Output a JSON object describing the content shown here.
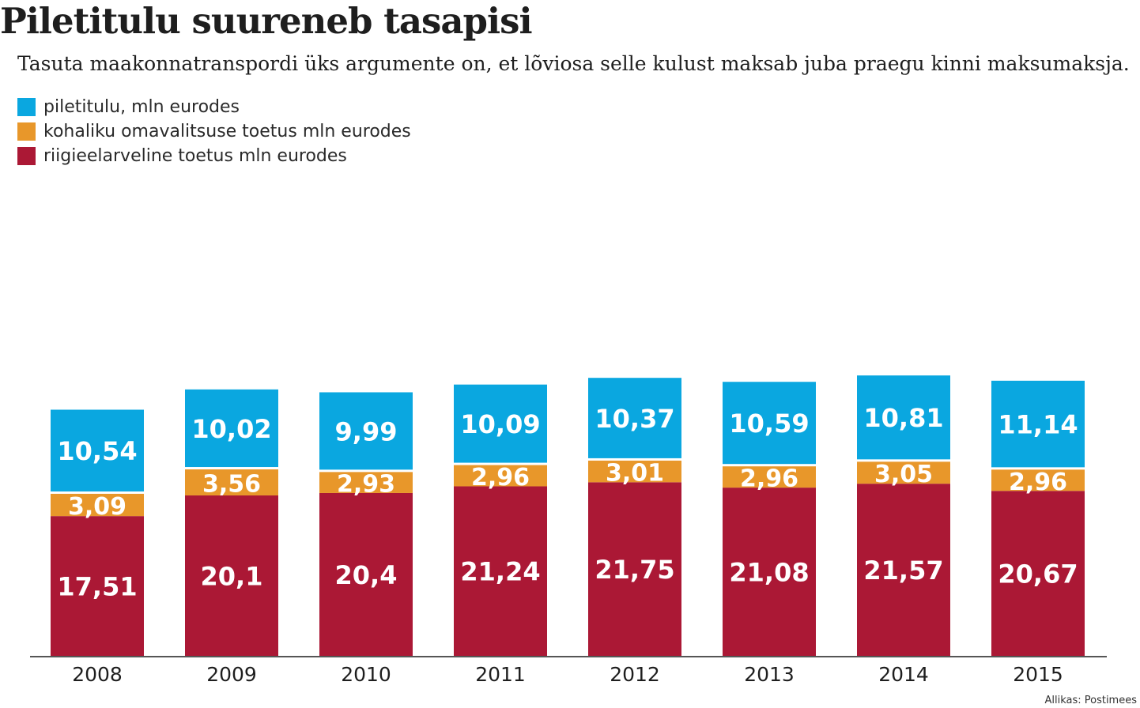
{
  "header": {
    "title": "Piletitulu suureneb tasapisi",
    "subtitle": "Tasuta maakonnatranspordi üks argumente on, et lõviosa selle kulust maksab juba praegu kinni maksumaksja."
  },
  "legend": [
    {
      "label": "piletitulu, mln eurodes",
      "color": "#0aa7e0"
    },
    {
      "label": "kohaliku omavalitsuse toetus mln eurodes",
      "color": "#e8972a"
    },
    {
      "label": "riigieelarveline toetus mln eurodes",
      "color": "#ab1835"
    }
  ],
  "source": "Allikas: Postimees",
  "chart_data": {
    "type": "bar",
    "stacked": true,
    "categories": [
      "2008",
      "2009",
      "2010",
      "2011",
      "2012",
      "2013",
      "2014",
      "2015"
    ],
    "series": [
      {
        "name": "riigieelarveline toetus mln eurodes",
        "color": "#ab1835",
        "values": [
          17.51,
          20.1,
          20.4,
          21.24,
          21.75,
          21.08,
          21.57,
          20.67
        ],
        "labels": [
          "17,51",
          "20,1",
          "20,4",
          "21,24",
          "21,75",
          "21,08",
          "21,57",
          "20,67"
        ]
      },
      {
        "name": "kohaliku omavalitsuse toetus mln eurodes",
        "color": "#e8972a",
        "values": [
          3.09,
          3.56,
          2.93,
          2.96,
          3.01,
          2.96,
          3.05,
          2.96
        ],
        "labels": [
          "3,09",
          "3,56",
          "2,93",
          "2,96",
          "3,01",
          "2,96",
          "3,05",
          "2,96"
        ]
      },
      {
        "name": "piletitulu, mln eurodes",
        "color": "#0aa7e0",
        "values": [
          10.54,
          10.02,
          9.99,
          10.09,
          10.37,
          10.59,
          10.81,
          11.14
        ],
        "labels": [
          "10,54",
          "10,02",
          "9,99",
          "10,09",
          "10,37",
          "10,59",
          "10,81",
          "11,14"
        ]
      }
    ],
    "grid": false,
    "legend_position": "top-left"
  }
}
